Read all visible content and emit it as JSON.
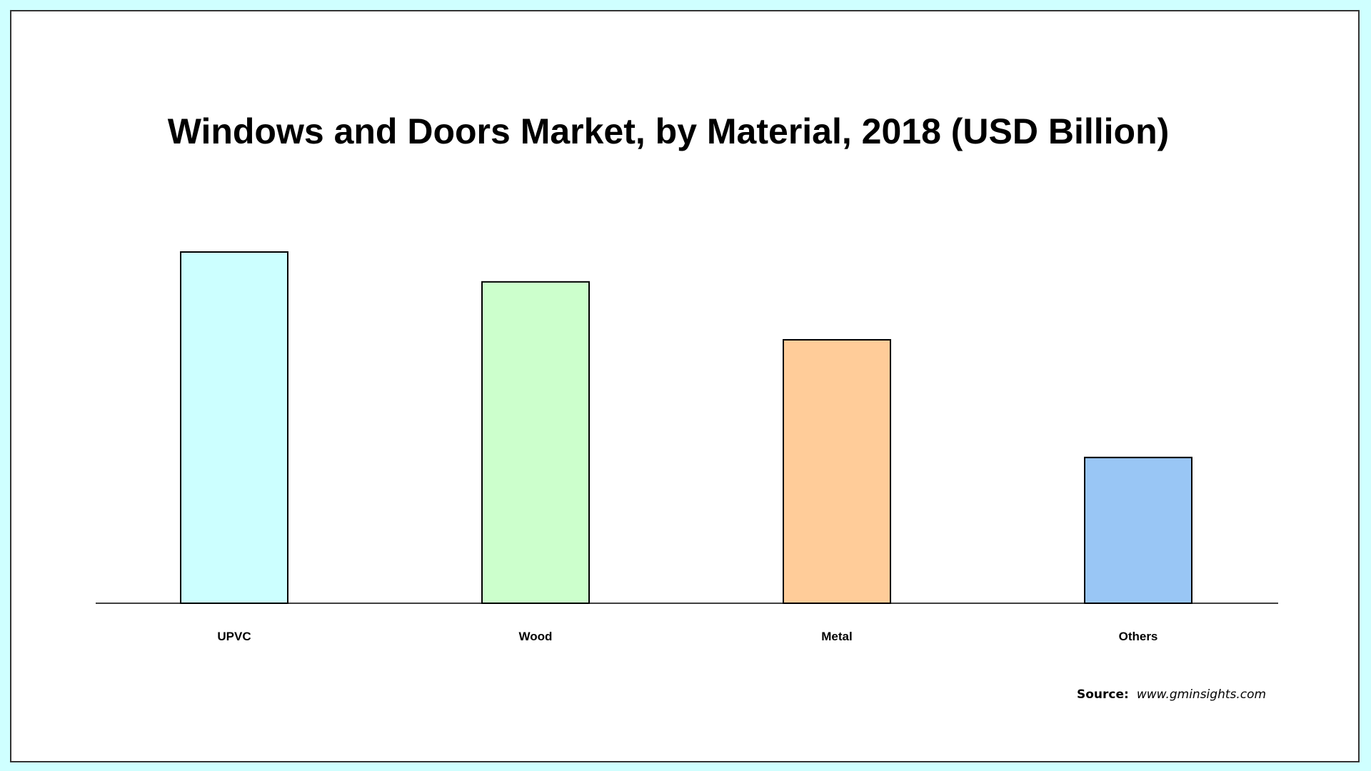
{
  "chart_data": {
    "type": "bar",
    "title": "Windows and Doors Market, by Material, 2018 (USD Billion)",
    "xlabel": "",
    "ylabel": "",
    "categories": [
      "UPVC",
      "Wood",
      "Metal",
      "Others"
    ],
    "values": [
      100,
      91.5,
      75,
      41.5
    ],
    "ylim": [
      0,
      100
    ],
    "grid": false,
    "legend": "none",
    "colors": [
      "#ccffff",
      "#ccffcc",
      "#ffcc99",
      "#99c6f5"
    ],
    "stroke_color": "#000000"
  },
  "source": {
    "label": "Source:",
    "url": "www.gminsights.com"
  }
}
